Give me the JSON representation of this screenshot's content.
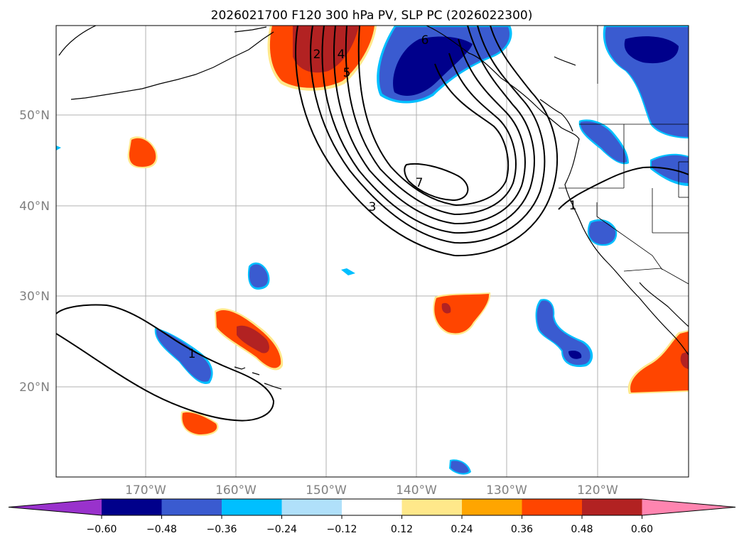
{
  "title": "2026021700 F120 300 hPa PV, SLP PC (2026022300)",
  "map": {
    "lat_labels": [
      "50°N",
      "40°N",
      "30°N",
      "20°N"
    ],
    "lon_labels": [
      "170°W",
      "160°W",
      "150°W",
      "140°W",
      "130°W",
      "120°W"
    ]
  },
  "colorbar": {
    "colors": [
      "#9932cc",
      "#00008b",
      "#3a5bd0",
      "#00bfff",
      "#b0e0fa",
      "#ffffff",
      "#ffe88a",
      "#ffa500",
      "#ff4500",
      "#b22222",
      "#ff85b0"
    ],
    "tick_labels": [
      "−0.60",
      "−0.48",
      "−0.36",
      "−0.24",
      "−0.12",
      "0.12",
      "0.24",
      "0.36",
      "0.48",
      "0.60"
    ],
    "extend": "both"
  },
  "contour_labels": {
    "c2": "2",
    "c4": "4",
    "c5": "5",
    "c6": "6",
    "c7": "7",
    "c3": "3",
    "c1_east": "1",
    "c1_west": "1"
  }
}
